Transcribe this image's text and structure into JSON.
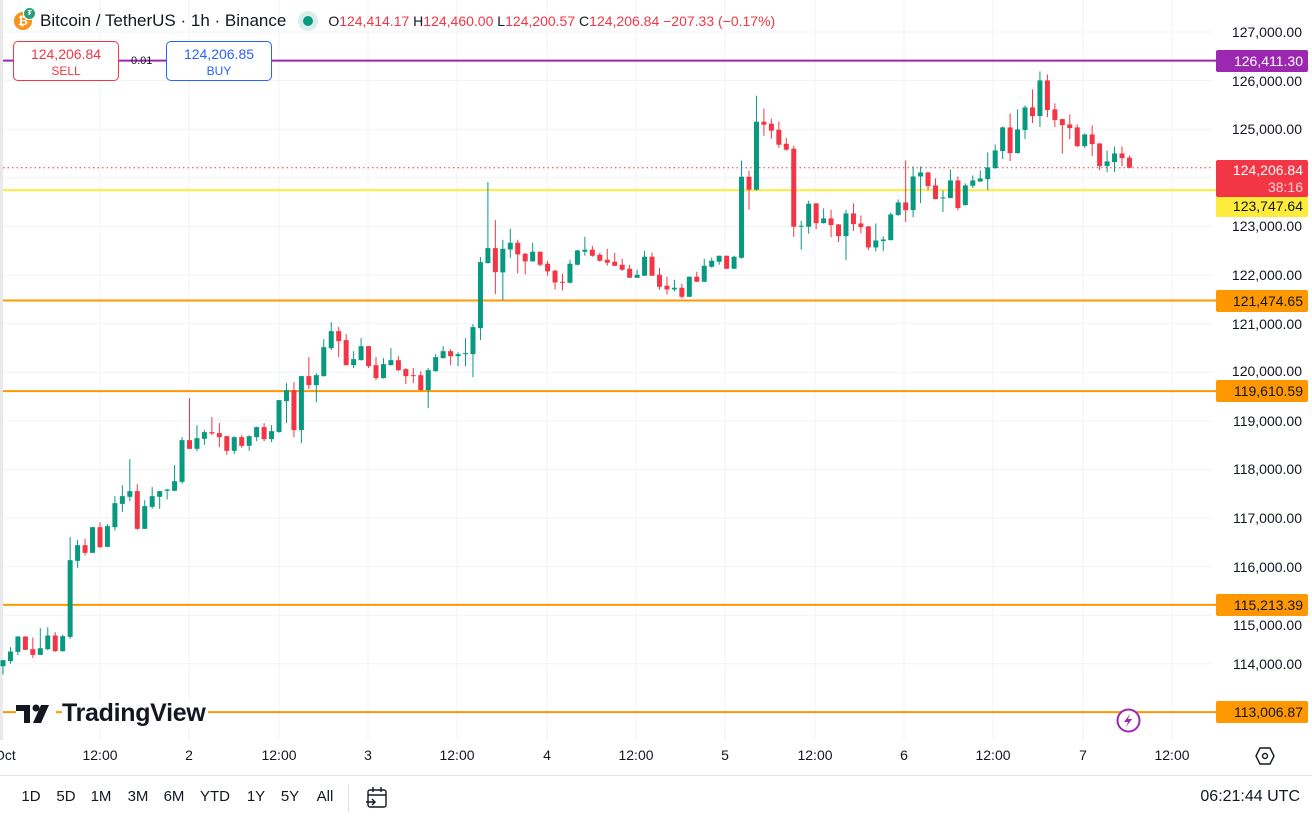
{
  "header": {
    "symbol": "Bitcoin / TetherUS · 1h · Binance",
    "icon": "bitcoin-tether-icon",
    "status": "market-open-dot",
    "o_label": "O",
    "o_value": "124,414.17",
    "h_label": "H",
    "h_value": "124,460.00",
    "l_label": "L",
    "l_value": "124,200.57",
    "c_label": "C",
    "c_value": "124,206.84",
    "change": "−207.33 (−0.17%)"
  },
  "trade": {
    "sell_price": "124,206.84",
    "sell_label": "SELL",
    "buy_price": "124,206.85",
    "buy_label": "BUY",
    "spread": "0.01"
  },
  "price_axis": {
    "ticks": [
      "127,000.00",
      "126,000.00",
      "125,000.00",
      "123,000.00",
      "122,000.00",
      "121,000.00",
      "120,000.00",
      "119,000.00",
      "118,000.00",
      "117,000.00",
      "116,000.00",
      "115,000.00",
      "114,000.00"
    ],
    "current_price": "124,206.84",
    "countdown": "38:16"
  },
  "levels": [
    {
      "label": "126,411.30",
      "value": 126411.3,
      "color": "#9c27b0",
      "text_color": "#ffffff"
    },
    {
      "label": "123,747.64",
      "value": 123747.64,
      "color": "#ffeb3b",
      "text_color": "#131722"
    },
    {
      "label": "121,474.65",
      "value": 121474.65,
      "color": "#ff9800",
      "text_color": "#131722"
    },
    {
      "label": "119,610.59",
      "value": 119610.59,
      "color": "#ff9800",
      "text_color": "#131722"
    },
    {
      "label": "115,213.39",
      "value": 115213.39,
      "color": "#ff9800",
      "text_color": "#131722"
    },
    {
      "label": "113,006.87",
      "value": 113006.87,
      "color": "#ff9800",
      "text_color": "#131722"
    }
  ],
  "time_axis": {
    "labels": [
      "Oct",
      "12:00",
      "2",
      "12:00",
      "3",
      "12:00",
      "4",
      "12:00",
      "5",
      "12:00",
      "6",
      "12:00",
      "7",
      "12:00"
    ]
  },
  "logo": "TradingView",
  "toolbar": {
    "ranges": [
      "1D",
      "5D",
      "1M",
      "3M",
      "6M",
      "YTD",
      "1Y",
      "5Y",
      "All"
    ],
    "clock": "06:21:44 UTC"
  },
  "colors": {
    "up": "#089981",
    "down": "#f23645",
    "current_price": "#f23645",
    "grid": "#f0f3fa"
  },
  "chart_data": {
    "type": "candlestick",
    "title": "Bitcoin / TetherUS · 1h · Binance",
    "interval": "1h",
    "ylim": [
      113000,
      127000
    ],
    "grid": true,
    "columns": [
      "time",
      "open",
      "high",
      "low",
      "close"
    ],
    "candles": [
      [
        "09-30 23:00",
        113950,
        114080,
        113780,
        114075
      ],
      [
        "10-01 00:00",
        114054,
        114342,
        113999,
        114252
      ],
      [
        "10-01 01:00",
        114246,
        114570,
        114177,
        114561
      ],
      [
        "10-01 02:00",
        114561,
        114570,
        114280,
        114287
      ],
      [
        "10-01 03:00",
        114301,
        114540,
        114122,
        114184
      ],
      [
        "10-01 04:00",
        114184,
        114733,
        114180,
        114321
      ],
      [
        "10-01 05:00",
        114301,
        114753,
        114280,
        114582
      ],
      [
        "10-01 06:00",
        114582,
        114650,
        114246,
        114260
      ],
      [
        "10-01 07:00",
        114260,
        114600,
        114250,
        114568
      ],
      [
        "10-01 08:00",
        114554,
        116606,
        114513,
        116132
      ],
      [
        "10-01 09:00",
        116118,
        116544,
        115975,
        116441
      ],
      [
        "10-01 10:00",
        116441,
        116571,
        116228,
        116283
      ],
      [
        "10-01 11:00",
        116283,
        116820,
        116280,
        116811
      ],
      [
        "10-01 12:00",
        116811,
        116914,
        116380,
        116400
      ],
      [
        "10-01 13:00",
        116407,
        116873,
        116400,
        116832
      ],
      [
        "10-01 14:00",
        116811,
        117450,
        116743,
        117305
      ],
      [
        "10-01 15:00",
        117291,
        117676,
        117127,
        117450
      ],
      [
        "10-01 16:00",
        117436,
        118211,
        117346,
        117553
      ],
      [
        "10-01 17:00",
        117553,
        117696,
        116757,
        116777
      ],
      [
        "10-01 18:00",
        116777,
        117367,
        116770,
        117244
      ],
      [
        "10-01 19:00",
        117230,
        117635,
        117189,
        117450
      ],
      [
        "10-01 20:00",
        117436,
        117560,
        117189,
        117553
      ],
      [
        "10-01 21:00",
        117560,
        117600,
        117381,
        117587
      ],
      [
        "10-01 22:00",
        117560,
        118088,
        117550,
        117758
      ],
      [
        "10-01 23:00",
        117744,
        118664,
        117703,
        118602
      ],
      [
        "10-02 00:00",
        118602,
        119466,
        118420,
        118424
      ],
      [
        "10-02 01:00",
        118424,
        118910,
        118375,
        118643
      ],
      [
        "10-02 02:00",
        118629,
        118808,
        118506,
        118767
      ],
      [
        "10-02 03:00",
        118767,
        119075,
        118705,
        118739
      ],
      [
        "10-02 04:00",
        118746,
        118952,
        118458,
        118664
      ],
      [
        "10-02 05:00",
        118684,
        118690,
        118300,
        118382
      ],
      [
        "10-02 06:00",
        118382,
        118680,
        118320,
        118664
      ],
      [
        "10-02 07:00",
        118664,
        118705,
        118444,
        118485
      ],
      [
        "10-02 08:00",
        118485,
        118700,
        118382,
        118684
      ],
      [
        "10-02 09:00",
        118664,
        118880,
        118581,
        118870
      ],
      [
        "10-02 10:00",
        118870,
        118952,
        118581,
        118623
      ],
      [
        "10-02 11:00",
        118623,
        118910,
        118561,
        118787
      ],
      [
        "10-02 12:00",
        118767,
        119430,
        118760,
        119425
      ],
      [
        "10-02 13:00",
        119405,
        119775,
        118952,
        119631
      ],
      [
        "10-02 14:00",
        119631,
        119796,
        118664,
        118808
      ],
      [
        "10-02 15:00",
        118808,
        119925,
        118540,
        119919
      ],
      [
        "10-02 16:00",
        119919,
        120310,
        119652,
        119734
      ],
      [
        "10-02 17:00",
        119734,
        119980,
        119384,
        119939
      ],
      [
        "10-02 18:00",
        119919,
        120680,
        119910,
        120516
      ],
      [
        "10-02 19:00",
        120495,
        121030,
        120454,
        120845
      ],
      [
        "10-02 20:00",
        120845,
        120927,
        120310,
        120639
      ],
      [
        "10-02 21:00",
        120660,
        120783,
        120140,
        120145
      ],
      [
        "10-02 22:00",
        120145,
        120433,
        120084,
        120269
      ],
      [
        "10-02 23:00",
        120248,
        120701,
        120240,
        120536
      ],
      [
        "10-03 00:00",
        120536,
        120540,
        120084,
        120125
      ],
      [
        "10-03 01:00",
        120145,
        120310,
        119837,
        119878
      ],
      [
        "10-03 02:00",
        119878,
        120290,
        119870,
        120166
      ],
      [
        "10-03 03:00",
        120145,
        120495,
        120140,
        120248
      ],
      [
        "10-03 04:00",
        120248,
        120330,
        120022,
        120042
      ],
      [
        "10-03 05:00",
        120063,
        120084,
        119755,
        119919
      ],
      [
        "10-03 06:00",
        119939,
        120084,
        119775,
        119919
      ],
      [
        "10-03 07:00",
        119939,
        120022,
        119625,
        119631
      ],
      [
        "10-03 08:00",
        119631,
        120084,
        119260,
        120042
      ],
      [
        "10-03 09:00",
        120022,
        120371,
        120010,
        120310
      ],
      [
        "10-03 10:00",
        120290,
        120536,
        120280,
        120433
      ],
      [
        "10-03 11:00",
        120433,
        120474,
        120145,
        120330
      ],
      [
        "10-03 12:00",
        120330,
        120413,
        120125,
        120372
      ],
      [
        "10-03 13:00",
        120372,
        120701,
        120125,
        120392
      ],
      [
        "10-03 14:00",
        120372,
        120989,
        119898,
        120927
      ],
      [
        "10-03 15:00",
        120907,
        122368,
        120660,
        122265
      ],
      [
        "10-03 16:00",
        122244,
        123912,
        122240,
        122553
      ],
      [
        "10-03 17:00",
        122553,
        123129,
        121607,
        122059
      ],
      [
        "10-03 18:00",
        122053,
        122725,
        121484,
        122540
      ],
      [
        "10-03 19:00",
        122526,
        122952,
        122355,
        122664
      ],
      [
        "10-03 20:00",
        122664,
        122725,
        122033,
        122424
      ],
      [
        "10-03 21:00",
        122437,
        122458,
        122012,
        122280
      ],
      [
        "10-03 22:00",
        122280,
        122664,
        122275,
        122478
      ],
      [
        "10-03 23:00",
        122478,
        122485,
        122177,
        122211
      ],
      [
        "10-04 00:00",
        122232,
        122293,
        121985,
        122074
      ],
      [
        "10-04 01:00",
        122088,
        122108,
        121703,
        121847
      ],
      [
        "10-04 02:00",
        121861,
        122026,
        121683,
        121847
      ],
      [
        "10-04 03:00",
        121841,
        122314,
        121827,
        122232
      ],
      [
        "10-04 04:00",
        122211,
        122520,
        122200,
        122506
      ],
      [
        "10-04 05:00",
        122478,
        122787,
        122396,
        122520
      ],
      [
        "10-04 06:00",
        122520,
        122602,
        122376,
        122396
      ],
      [
        "10-04 07:00",
        122417,
        122458,
        122273,
        122293
      ],
      [
        "10-04 08:00",
        122314,
        122540,
        122190,
        122252
      ],
      [
        "10-04 09:00",
        122273,
        122458,
        122185,
        122190
      ],
      [
        "10-04 10:00",
        122211,
        122334,
        122088,
        122108
      ],
      [
        "10-04 11:00",
        122129,
        122211,
        121940,
        121943
      ],
      [
        "10-04 12:00",
        121943,
        122108,
        121940,
        122006
      ],
      [
        "10-04 13:00",
        121985,
        122499,
        121980,
        122376
      ],
      [
        "10-04 14:00",
        122376,
        122458,
        121980,
        121985
      ],
      [
        "10-04 15:00",
        122006,
        122149,
        121697,
        121758
      ],
      [
        "10-04 16:00",
        121779,
        121964,
        121600,
        121703
      ],
      [
        "10-04 17:00",
        121703,
        121902,
        121662,
        121738
      ],
      [
        "10-04 18:00",
        121738,
        121820,
        121518,
        121552
      ],
      [
        "10-04 19:00",
        121552,
        121970,
        121545,
        121964
      ],
      [
        "10-04 20:00",
        121964,
        122067,
        121855,
        121861
      ],
      [
        "10-04 21:00",
        121861,
        122334,
        121855,
        122190
      ],
      [
        "10-04 22:00",
        122170,
        122355,
        122149,
        122293
      ],
      [
        "10-04 23:00",
        122273,
        122400,
        122211,
        122396
      ],
      [
        "10-05 00:00",
        122396,
        122400,
        122125,
        122129
      ],
      [
        "10-05 01:00",
        122129,
        122396,
        122125,
        122376
      ],
      [
        "10-05 02:00",
        122355,
        124351,
        122334,
        124022
      ],
      [
        "10-05 03:00",
        124022,
        124145,
        123343,
        123754
      ],
      [
        "10-05 04:00",
        123754,
        125689,
        123734,
        125154
      ],
      [
        "10-05 05:00",
        125154,
        125421,
        124866,
        125092
      ],
      [
        "10-05 06:00",
        125113,
        125216,
        124804,
        124969
      ],
      [
        "10-05 07:00",
        124989,
        125154,
        124619,
        124681
      ],
      [
        "10-05 08:00",
        124701,
        124825,
        124557,
        124578
      ],
      [
        "10-05 09:00",
        124598,
        124660,
        122787,
        122993
      ],
      [
        "10-05 10:00",
        122993,
        123116,
        122520,
        123013
      ],
      [
        "10-05 11:00",
        122993,
        123528,
        122849,
        123466
      ],
      [
        "10-05 12:00",
        123473,
        123480,
        122944,
        123068
      ],
      [
        "10-05 13:00",
        123068,
        123370,
        123060,
        123164
      ],
      [
        "10-05 14:00",
        123164,
        123342,
        122780,
        123027
      ],
      [
        "10-05 15:00",
        123040,
        123050,
        122677,
        122800
      ],
      [
        "10-05 16:00",
        122800,
        123342,
        122306,
        123267
      ],
      [
        "10-05 17:00",
        123267,
        123473,
        122903,
        123047
      ],
      [
        "10-05 18:00",
        123061,
        123226,
        122862,
        122985
      ],
      [
        "10-05 19:00",
        122999,
        123010,
        122512,
        122567
      ],
      [
        "10-05 20:00",
        122567,
        123061,
        122485,
        122711
      ],
      [
        "10-05 21:00",
        122697,
        122793,
        122492,
        122731
      ],
      [
        "10-05 22:00",
        122718,
        123287,
        122710,
        123246
      ],
      [
        "10-05 23:00",
        123232,
        123555,
        123220,
        123493
      ],
      [
        "10-06 00:00",
        123493,
        124358,
        123088,
        123335
      ],
      [
        "10-06 01:00",
        123335,
        124234,
        123191,
        124028
      ],
      [
        "10-06 02:00",
        124028,
        124234,
        123480,
        124110
      ],
      [
        "10-06 03:00",
        124110,
        124120,
        123747,
        123829
      ],
      [
        "10-06 04:00",
        123843,
        123987,
        123555,
        123562
      ],
      [
        "10-06 05:00",
        123576,
        123740,
        123295,
        123596
      ],
      [
        "10-06 06:00",
        123583,
        124172,
        123580,
        123946
      ],
      [
        "10-06 07:00",
        123946,
        124028,
        123329,
        123377
      ],
      [
        "10-06 08:00",
        123438,
        123884,
        123430,
        123843
      ],
      [
        "10-06 09:00",
        123836,
        124049,
        123788,
        123946
      ],
      [
        "10-06 10:00",
        123925,
        124152,
        123912,
        123987
      ],
      [
        "10-06 11:00",
        123973,
        124522,
        123747,
        124213
      ],
      [
        "10-06 12:00",
        124200,
        124687,
        124186,
        124563
      ],
      [
        "10-06 13:00",
        124550,
        125057,
        124385,
        125037
      ],
      [
        "10-06 14:00",
        125037,
        125325,
        124344,
        124508
      ],
      [
        "10-06 15:00",
        124508,
        125407,
        124500,
        124996
      ],
      [
        "10-06 16:00",
        124982,
        125489,
        124797,
        125448
      ],
      [
        "10-06 17:00",
        125448,
        125819,
        125126,
        125270
      ],
      [
        "10-06 18:00",
        125270,
        126189,
        125044,
        126004
      ],
      [
        "10-06 19:00",
        126004,
        126127,
        125249,
        125393
      ],
      [
        "10-06 20:00",
        125407,
        125531,
        125044,
        125188
      ],
      [
        "10-06 21:00",
        125208,
        125210,
        124502,
        125085
      ],
      [
        "10-06 22:00",
        125098,
        125304,
        124796,
        125023
      ],
      [
        "10-06 23:00",
        125037,
        125098,
        124632,
        124652
      ],
      [
        "10-07 00:00",
        124652,
        124913,
        124611,
        124892
      ],
      [
        "10-07 01:00",
        124892,
        125078,
        124447,
        124693
      ],
      [
        "10-07 02:00",
        124707,
        124710,
        124158,
        124241
      ],
      [
        "10-07 03:00",
        124241,
        124563,
        124117,
        124337
      ],
      [
        "10-07 04:00",
        124323,
        124645,
        124117,
        124501
      ],
      [
        "10-07 05:00",
        124501,
        124645,
        124241,
        124405
      ],
      [
        "10-07 06:00",
        124414.17,
        124460.0,
        124200.57,
        124206.84
      ]
    ]
  }
}
